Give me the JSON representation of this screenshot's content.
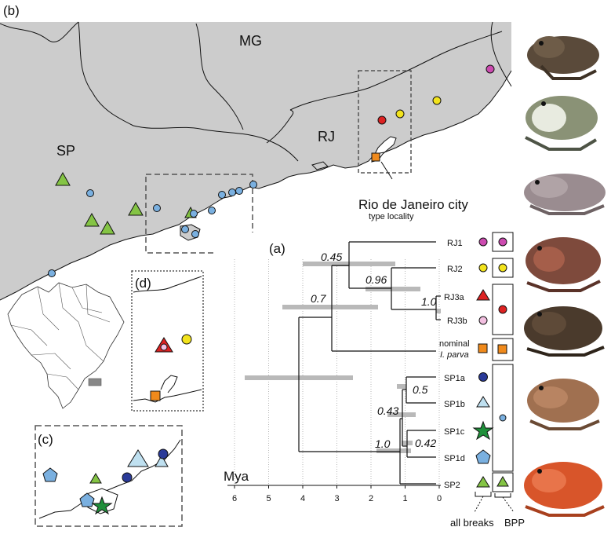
{
  "panels": {
    "b": "(b)",
    "a": "(a)",
    "c": "(c)",
    "d": "(d)"
  },
  "map": {
    "states": [
      "MG",
      "RJ",
      "SP"
    ],
    "city_name": "Rio de Janeiro city",
    "city_note": "type locality"
  },
  "tree": {
    "axis_label": "Mya",
    "ticks": [
      "6",
      "5",
      "4",
      "3",
      "2",
      "1",
      "0"
    ],
    "tick_values": [
      6,
      5,
      4,
      3,
      2,
      1,
      0
    ],
    "tips": [
      "RJ1",
      "RJ2",
      "RJ3a",
      "RJ3b",
      "nominal",
      "I. parva",
      "SP1a",
      "SP1b",
      "SP1c",
      "SP1d",
      "SP2"
    ],
    "support": [
      "0.45",
      "0.96",
      "1.0",
      "0.7",
      "0.5",
      "0.43",
      "0.42",
      "1.0"
    ]
  },
  "columns": {
    "all_breaks": "all breaks",
    "bpp": "BPP"
  },
  "colors": {
    "land": "#cccccc",
    "sea": "#ffffff",
    "magenta": "#cc4bb0",
    "yellow": "#f2e31c",
    "red": "#dd2222",
    "pink": "#f2bfe0",
    "orange": "#f08a1c",
    "navy": "#2a3a98",
    "light_blue": "#bfe0f0",
    "green_star": "#1f8f3a",
    "blue": "#7ab0e0",
    "green": "#84c444"
  }
}
